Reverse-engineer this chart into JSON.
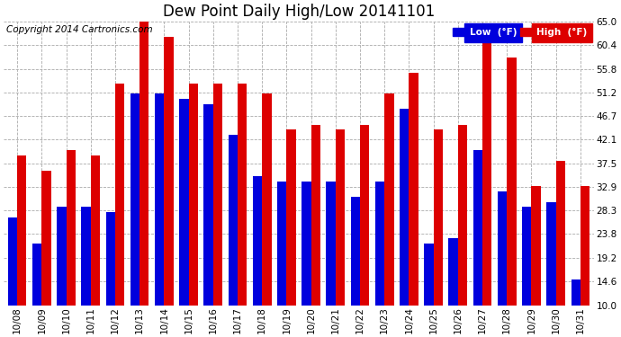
{
  "title": "Dew Point Daily High/Low 20141101",
  "copyright": "Copyright 2014 Cartronics.com",
  "dates": [
    "10/08",
    "10/09",
    "10/10",
    "10/11",
    "10/12",
    "10/13",
    "10/14",
    "10/15",
    "10/16",
    "10/17",
    "10/18",
    "10/19",
    "10/20",
    "10/21",
    "10/22",
    "10/23",
    "10/24",
    "10/25",
    "10/26",
    "10/27",
    "10/28",
    "10/29",
    "10/30",
    "10/31"
  ],
  "low_values": [
    27,
    22,
    29,
    29,
    28,
    51,
    51,
    50,
    49,
    43,
    35,
    34,
    34,
    34,
    31,
    34,
    48,
    22,
    23,
    40,
    32,
    29,
    30,
    15
  ],
  "high_values": [
    39,
    36,
    40,
    39,
    53,
    65,
    62,
    53,
    53,
    53,
    51,
    44,
    45,
    44,
    45,
    51,
    55,
    44,
    45,
    61,
    58,
    33,
    38,
    33
  ],
  "ymin": 10.0,
  "ymax": 65.0,
  "yticks": [
    10.0,
    14.6,
    19.2,
    23.8,
    28.3,
    32.9,
    37.5,
    42.1,
    46.7,
    51.2,
    55.8,
    60.4,
    65.0
  ],
  "bar_width": 0.38,
  "low_color": "#0000dd",
  "high_color": "#dd0000",
  "bg_color": "#ffffff",
  "plot_bg_color": "#ffffff",
  "grid_color": "#aaaaaa",
  "title_fontsize": 12,
  "copyright_fontsize": 7.5,
  "tick_fontsize": 7.5
}
